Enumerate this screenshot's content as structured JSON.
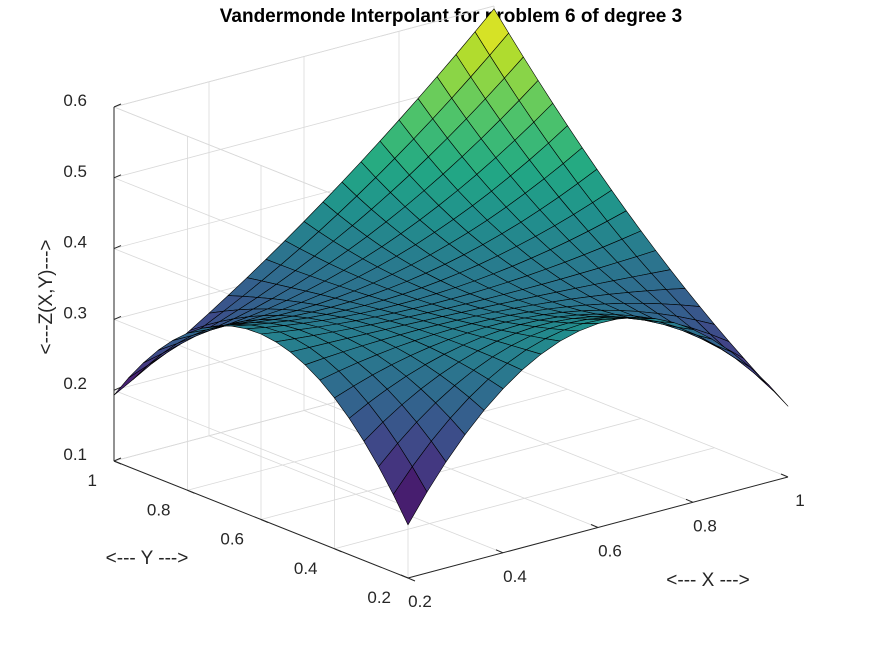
{
  "chart_data": {
    "type": "surface",
    "title": "Vandermonde Interpolant for problem 6 of degree 3",
    "xlabel": "<--- X --->",
    "ylabel": "<--- Y --->",
    "zlabel": "<---Z(X,Y)--->",
    "xlim": [
      0.2,
      1
    ],
    "ylim": [
      0.2,
      1
    ],
    "zlim": [
      0.1,
      0.6
    ],
    "x_ticks": [
      "0.2",
      "0.4",
      "0.6",
      "0.8",
      "1"
    ],
    "y_ticks": [
      "0.2",
      "0.4",
      "0.6",
      "0.8",
      "1"
    ],
    "z_ticks": [
      "0.1",
      "0.2",
      "0.3",
      "0.4",
      "0.5",
      "0.6"
    ],
    "grid": true,
    "colormap": "viridis",
    "grid_x": [
      0.2,
      0.6,
      1.0
    ],
    "grid_y": [
      0.2,
      0.6,
      1.0
    ],
    "z_values": [
      [
        0.175,
        0.388,
        0.2
      ],
      [
        0.362,
        0.34,
        0.365
      ],
      [
        0.193,
        0.367,
        0.596
      ]
    ],
    "mesh_resolution": 20
  }
}
